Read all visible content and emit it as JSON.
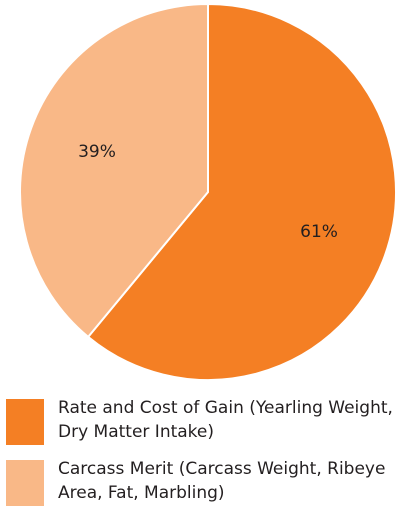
{
  "chart_data": {
    "type": "pie",
    "slices": [
      {
        "label": "Rate and Cost of Gain (Yearling Weight, Dry Matter Intake)",
        "value": 61,
        "display": "61%",
        "color": "#f47f24"
      },
      {
        "label": "Carcass Merit (Carcass Weight, Ribeye Area, Fat, Marbling)",
        "value": 39,
        "display": "39%",
        "color": "#f9b887"
      }
    ],
    "start": "12 o'clock",
    "direction": "clockwise",
    "legend_position": "bottom"
  },
  "legend": {
    "items": [
      {
        "line1": "Rate and Cost of Gain (Yearling Weight,",
        "line2": "Dry Matter Intake)"
      },
      {
        "line1": "Carcass Merit (Carcass Weight, Ribeye",
        "line2": "Area, Fat, Marbling)"
      }
    ]
  }
}
